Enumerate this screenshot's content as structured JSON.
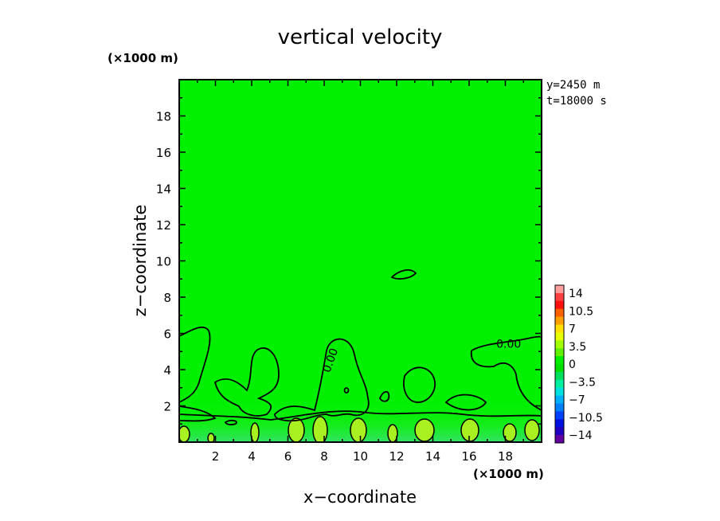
{
  "chart_data": {
    "type": "heatmap",
    "title": "vertical velocity",
    "xlabel": "x−coordinate",
    "ylabel": "z−coordinate",
    "x_unit": "(×1000 m)",
    "y_unit": "(×1000 m)",
    "info_lines": [
      "y=2450 m",
      "t=18000 s"
    ],
    "xlim": [
      0,
      20
    ],
    "ylim": [
      0,
      20
    ],
    "x_ticks": [
      2,
      4,
      6,
      8,
      10,
      12,
      14,
      16,
      18
    ],
    "y_ticks": [
      2,
      4,
      6,
      8,
      10,
      12,
      14,
      16,
      18
    ],
    "field_color": "#00f000",
    "contour_labels": [
      {
        "text": "0.00",
        "x": 8.3,
        "z": 3.8
      },
      {
        "text": "0.00",
        "x": 17.5,
        "z": 5.2
      }
    ],
    "colorbar": {
      "labels": [
        "14",
        "10.5",
        "7",
        "3.5",
        "0",
        "−3.5",
        "−7",
        "−10.5",
        "−14"
      ],
      "colors": [
        "#ffa0a0",
        "#ff4040",
        "#ff1010",
        "#ff6000",
        "#ffa000",
        "#ffe000",
        "#e8ff00",
        "#a0ff00",
        "#60f000",
        "#00f000",
        "#00e000",
        "#00e060",
        "#00f0a0",
        "#00e0e0",
        "#00b0ff",
        "#0080ff",
        "#0040ff",
        "#0010e0",
        "#2000c0",
        "#6000a0"
      ]
    }
  }
}
